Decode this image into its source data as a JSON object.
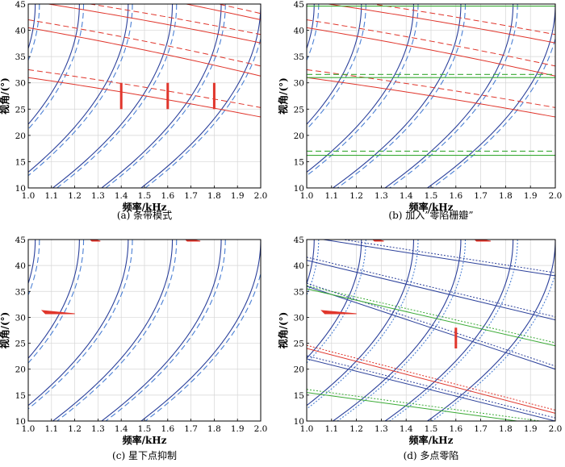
{
  "chart_data": [
    {
      "type": "line",
      "caption": "(a) 条带模式",
      "xlabel": "频率/kHz",
      "ylabel": "视角/(°)",
      "xlim": [
        1.0,
        2.0
      ],
      "ylim": [
        10,
        45
      ],
      "xticks": [
        "1.0",
        "1.1",
        "1.2",
        "1.3",
        "1.4",
        "1.5",
        "1.6",
        "1.7",
        "1.8",
        "1.9",
        "2.0"
      ],
      "yticks": [
        "10",
        "15",
        "20",
        "25",
        "30",
        "35",
        "40",
        "45"
      ],
      "grid": true,
      "steep_curve_starts_x": [
        1.03,
        1.22,
        1.43,
        1.62,
        1.83,
        2.0
      ],
      "steep_curve_colors": {
        "solid": "#2a3f9a",
        "dashed": "#4a7fd4"
      },
      "flat_red_curves": [
        {
          "style": "solid",
          "y_left": 31.0,
          "y_right": 23.5
        },
        {
          "style": "dashed",
          "y_left": 32.5,
          "y_right": 25.3
        },
        {
          "style": "solid",
          "y_left": 40.5,
          "y_right": 31.3
        },
        {
          "style": "dashed",
          "y_left": 42.0,
          "y_right": 33.2
        },
        {
          "style": "solid",
          "y_left": 45.6,
          "y_right": 37.6
        },
        {
          "style": "dashed",
          "y_left": 46.8,
          "y_right": 39.2
        },
        {
          "style": "solid",
          "y_left": 50.5,
          "y_right": 42.0
        },
        {
          "style": "dashed",
          "y_left": 52.0,
          "y_right": 43.2
        }
      ],
      "red_markers": [
        {
          "x": 1.4,
          "y1": 25.0,
          "y2": 30.0
        },
        {
          "x": 1.6,
          "y1": 25.0,
          "y2": 30.0
        },
        {
          "x": 1.8,
          "y1": 25.0,
          "y2": 30.0
        }
      ],
      "colors": {
        "red": "#e0352b",
        "green": "#3aaa35"
      }
    },
    {
      "type": "line",
      "caption": "(b) 加入”零陷栅瓣”",
      "xlabel": "频率/kHz",
      "ylabel": "视角/(°)",
      "xlim": [
        1.0,
        2.0
      ],
      "ylim": [
        10,
        45
      ],
      "xticks": [
        "1.0",
        "1.1",
        "1.2",
        "1.3",
        "1.4",
        "1.5",
        "1.6",
        "1.7",
        "1.8",
        "1.9",
        "2.0"
      ],
      "yticks": [
        "10",
        "15",
        "20",
        "25",
        "30",
        "35",
        "40",
        "45"
      ],
      "grid": true,
      "steep_curve_starts_x": [
        1.03,
        1.22,
        1.43,
        1.62,
        1.83,
        2.0
      ],
      "flat_red_curves": [
        {
          "style": "solid",
          "y_left": 31.0,
          "y_right": 23.5
        },
        {
          "style": "dashed",
          "y_left": 32.5,
          "y_right": 25.3
        },
        {
          "style": "solid",
          "y_left": 40.5,
          "y_right": 31.3
        },
        {
          "style": "dashed",
          "y_left": 42.0,
          "y_right": 33.2
        },
        {
          "style": "solid",
          "y_left": 45.6,
          "y_right": 37.6
        },
        {
          "style": "dashed",
          "y_left": 46.8,
          "y_right": 39.2
        }
      ],
      "green_lines": [
        {
          "style": "solid",
          "y": 16.2
        },
        {
          "style": "dashed",
          "y": 17.0
        },
        {
          "style": "solid",
          "y": 31.0
        },
        {
          "style": "dashed",
          "y": 31.6
        },
        {
          "style": "solid",
          "y": 44.6
        },
        {
          "style": "dashed",
          "y": 45.0
        }
      ]
    },
    {
      "type": "line",
      "caption": "(c) 星下点抑制",
      "xlabel": "频率/kHz",
      "ylabel": "视角/(°)",
      "xlim": [
        1.0,
        2.0
      ],
      "ylim": [
        10,
        45
      ],
      "xticks": [
        "1.0",
        "1.1",
        "1.2",
        "1.3",
        "1.4",
        "1.5",
        "1.6",
        "1.7",
        "1.8",
        "1.9",
        "2.0"
      ],
      "yticks": [
        "10",
        "15",
        "20",
        "25",
        "30",
        "35",
        "40",
        "45"
      ],
      "grid": true,
      "steep_curve_starts_x": [
        1.03,
        1.22,
        1.43,
        1.62,
        1.83,
        2.0
      ],
      "red_wedges": [
        {
          "x1": 1.06,
          "x2": 1.2,
          "y": 31.0
        },
        {
          "x1": 1.26,
          "x2": 1.31,
          "y": 45.0
        },
        {
          "x1": 1.67,
          "x2": 1.74,
          "y": 45.0
        }
      ]
    },
    {
      "type": "line",
      "caption": "(d) 多点零陷",
      "xlabel": "频率/kHz",
      "ylabel": "视角/(°)",
      "xlim": [
        1.0,
        2.0
      ],
      "ylim": [
        10,
        45
      ],
      "xticks": [
        "1.0",
        "1.1",
        "1.2",
        "1.3",
        "1.4",
        "1.5",
        "1.6",
        "1.7",
        "1.8",
        "1.9",
        "2.0"
      ],
      "yticks": [
        "10",
        "15",
        "20",
        "25",
        "30",
        "35",
        "40",
        "45"
      ],
      "grid": true,
      "steep_curve_starts_x": [
        1.03,
        1.22,
        1.43,
        1.62,
        1.83,
        2.0
      ],
      "red_wedges": [
        {
          "x1": 1.06,
          "x2": 1.2,
          "y": 31.0
        },
        {
          "x1": 1.26,
          "x2": 1.31,
          "y": 45.0
        },
        {
          "x1": 1.67,
          "x2": 1.74,
          "y": 45.0
        }
      ],
      "red_markers": [
        {
          "x": 1.6,
          "y1": 24.0,
          "y2": 28.0
        }
      ],
      "sloped_lines": [
        {
          "color": "blue",
          "y_left": 41.0,
          "y_right": 29.5
        },
        {
          "color": "blue",
          "y_left": 36.0,
          "y_right": 20.0
        },
        {
          "color": "blue",
          "y_left": 22.0,
          "y_right": 10.0
        },
        {
          "color": "blue",
          "y_left": 45.5,
          "y_right": 38.0
        },
        {
          "color": "green",
          "y_left": 35.5,
          "y_right": 24.5
        },
        {
          "color": "green",
          "y_left": 15.5,
          "y_right": 9.0
        },
        {
          "color": "red",
          "y_left": 24.0,
          "y_right": 11.5
        }
      ]
    }
  ]
}
